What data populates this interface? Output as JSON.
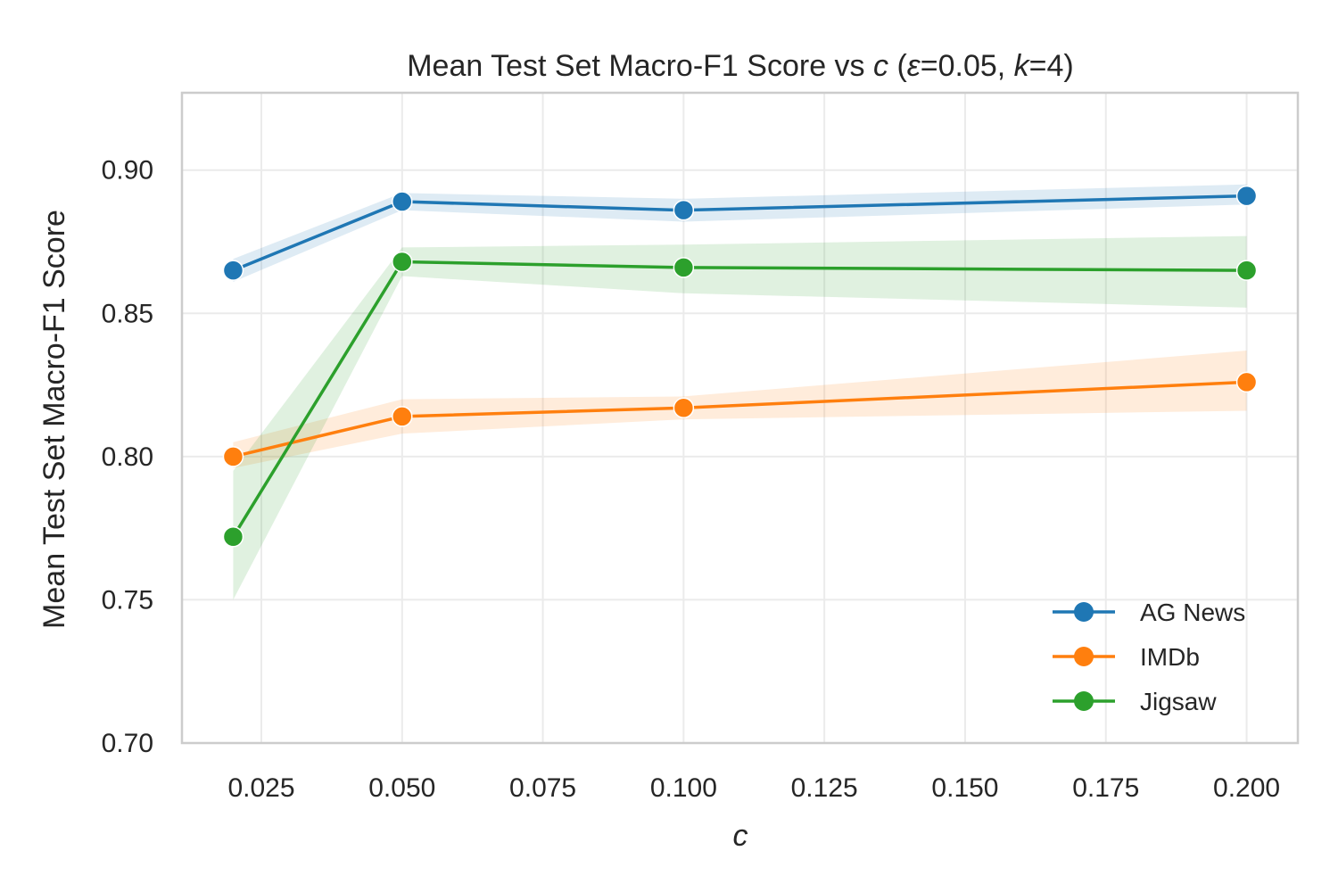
{
  "chart_data": {
    "type": "line",
    "title_parts": [
      {
        "text": "Mean Test Set Macro-F1 Score vs ",
        "italic": false
      },
      {
        "text": "c",
        "italic": true
      },
      {
        "text": " (",
        "italic": false
      },
      {
        "text": "ε",
        "italic": true
      },
      {
        "text": "=0.05, ",
        "italic": false
      },
      {
        "text": "k",
        "italic": true
      },
      {
        "text": "=4)",
        "italic": false
      }
    ],
    "xlabel": "c",
    "ylabel": "Mean Test Set Macro-F1 Score",
    "xlim": [
      0.0109,
      0.2091
    ],
    "ylim": [
      0.7,
      0.927
    ],
    "xticks": [
      0.025,
      0.05,
      0.075,
      0.1,
      0.125,
      0.15,
      0.175,
      0.2
    ],
    "xtick_labels": [
      "0.025",
      "0.050",
      "0.075",
      "0.100",
      "0.125",
      "0.150",
      "0.175",
      "0.200"
    ],
    "yticks": [
      0.7,
      0.75,
      0.8,
      0.85,
      0.9
    ],
    "ytick_labels": [
      "0.70",
      "0.75",
      "0.80",
      "0.85",
      "0.90"
    ],
    "grid": true,
    "legend_position": "lower-right",
    "x": [
      0.02,
      0.05,
      0.1,
      0.2
    ],
    "series": [
      {
        "name": "AG News",
        "color": "#1f77b4",
        "values": [
          0.865,
          0.889,
          0.886,
          0.891
        ],
        "lower": [
          0.861,
          0.886,
          0.882,
          0.888
        ],
        "upper": [
          0.869,
          0.892,
          0.89,
          0.895
        ]
      },
      {
        "name": "IMDb",
        "color": "#ff7f0e",
        "values": [
          0.8,
          0.814,
          0.817,
          0.826
        ],
        "lower": [
          0.796,
          0.808,
          0.813,
          0.816
        ],
        "upper": [
          0.805,
          0.82,
          0.821,
          0.837
        ]
      },
      {
        "name": "Jigsaw",
        "color": "#2ca02c",
        "values": [
          0.772,
          0.868,
          0.866,
          0.865
        ],
        "lower": [
          0.75,
          0.863,
          0.857,
          0.852
        ],
        "upper": [
          0.795,
          0.873,
          0.874,
          0.877
        ]
      }
    ]
  }
}
